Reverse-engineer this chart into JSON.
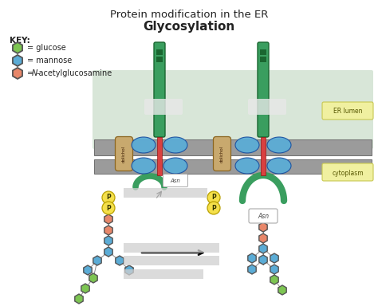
{
  "title_line1": "Protein modification in the ER",
  "title_line2": "Glycosylation",
  "key_title": "KEY:",
  "glucose_color": "#7dc552",
  "mannose_color": "#5bacd6",
  "nag_color": "#e8876a",
  "membrane_color": "#9b9b9b",
  "membrane_edge_color": "#6e6e6e",
  "dolichol_color": "#c8a96e",
  "protein_color": "#3a9e5f",
  "red_channel_color": "#d94040",
  "blue_torus_color": "#5bacd6",
  "p_circle_color": "#f5e04a",
  "bg_color": "#ffffff",
  "er_lumen_bg": "#c8dcc8",
  "yellow_box_color": "#f0f0a0",
  "text_color": "#222222",
  "gray_box_color": "#d0d0d0"
}
